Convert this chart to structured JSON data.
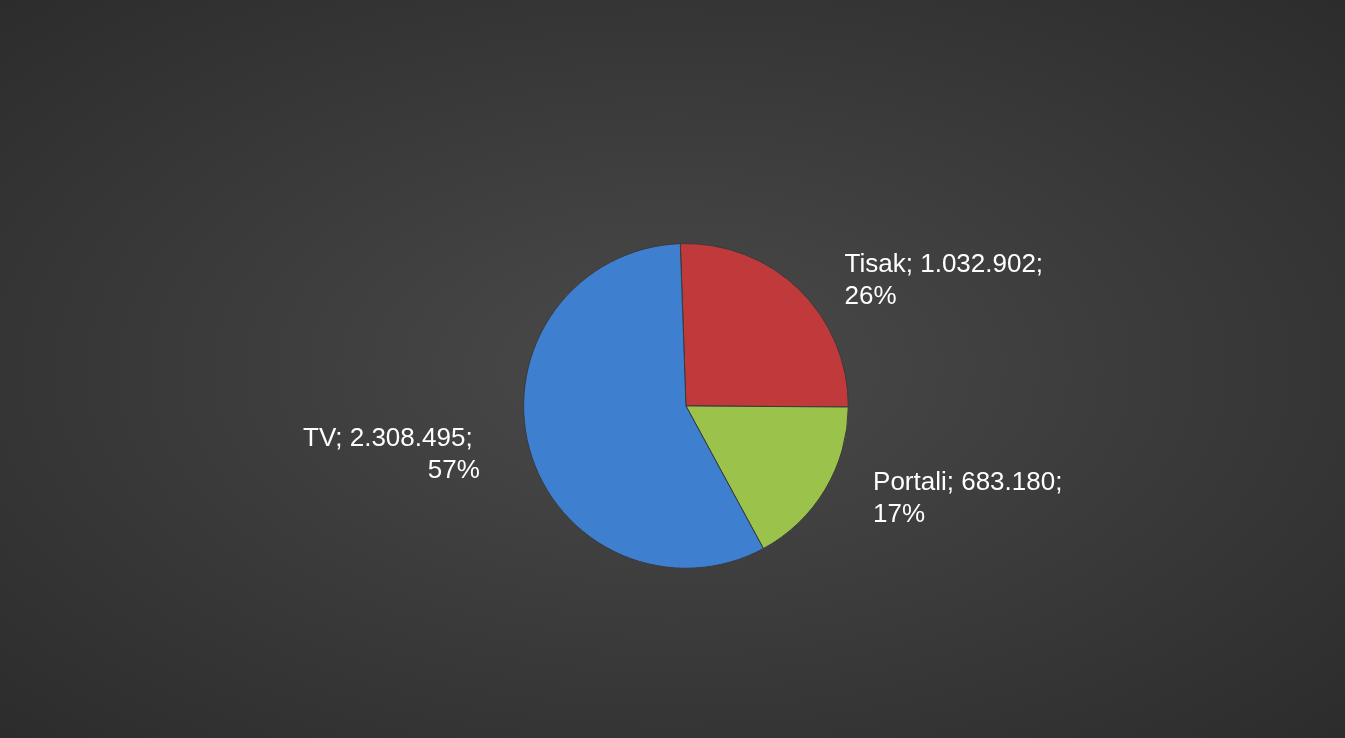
{
  "chart_data": {
    "type": "pie",
    "categories": [
      "Tisak",
      "Portali",
      "TV"
    ],
    "values": [
      1032902,
      683180,
      2308495
    ],
    "colors": [
      "#c0393b",
      "#9bc24a",
      "#3f7fcf"
    ],
    "value_labels": [
      "1.032.902; 26%",
      "683.180; 17%",
      "2.308.495; 57%"
    ]
  }
}
